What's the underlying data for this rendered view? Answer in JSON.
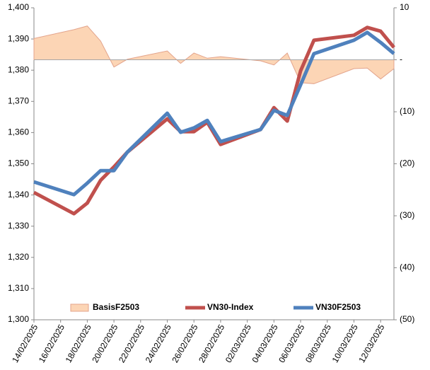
{
  "chart_data": {
    "type": "line",
    "x": [
      "14/02/2025",
      "17/02/2025",
      "18/02/2025",
      "19/02/2025",
      "20/02/2025",
      "21/02/2025",
      "24/02/2025",
      "25/02/2025",
      "26/02/2025",
      "27/02/2025",
      "28/02/2025",
      "03/03/2025",
      "04/03/2025",
      "05/03/2025",
      "06/03/2025",
      "07/03/2025",
      "10/03/2025",
      "11/03/2025",
      "12/03/2025",
      "13/03/2025"
    ],
    "xticks": [
      "14/02/2025",
      "16/02/2025",
      "18/02/2025",
      "20/02/2025",
      "22/02/2025",
      "24/02/2025",
      "26/02/2025",
      "28/02/2025",
      "02/03/2025",
      "04/03/2025",
      "06/03/2025",
      "08/03/2025",
      "10/03/2025",
      "12/03/2025"
    ],
    "series": [
      {
        "name": "BasisF2503",
        "type": "area",
        "axis": "y2",
        "color": "#fcd5b5",
        "edge": "#e3a48c",
        "values": [
          4.1,
          5.8,
          6.5,
          3.6,
          -1.4,
          0.1,
          1.7,
          -0.7,
          1.3,
          0.3,
          0.6,
          -0.2,
          -1.0,
          1.3,
          -4.4,
          -4.6,
          -1.7,
          -1.6,
          -3.7,
          -1.7
        ]
      },
      {
        "name": "VN30-Index",
        "type": "line",
        "color": "#c0504d",
        "values": [
          1340.8,
          1334.0,
          1337.4,
          1344.7,
          1349.0,
          1353.7,
          1364.4,
          1360.3,
          1360.3,
          1363.3,
          1356.2,
          1361.0,
          1368.0,
          1363.7,
          1379.8,
          1389.6,
          1391.2,
          1393.7,
          1392.5,
          1387.3
        ]
      },
      {
        "name": "VN30F2503",
        "type": "line",
        "color": "#4f81bd",
        "values": [
          1344.2,
          1340.1,
          1343.8,
          1347.8,
          1347.8,
          1353.7,
          1366.2,
          1360.1,
          1361.5,
          1363.9,
          1357.1,
          1361.0,
          1367.1,
          1365.5,
          1375.3,
          1385.3,
          1389.6,
          1392.1,
          1388.9,
          1385.3
        ]
      }
    ],
    "ylim": [
      1300,
      1400
    ],
    "yticks": [
      {
        "value": 1300,
        "label": "1,300"
      },
      {
        "value": 1310,
        "label": "1,310"
      },
      {
        "value": 1320,
        "label": "1,320"
      },
      {
        "value": 1330,
        "label": "1,330"
      },
      {
        "value": 1340,
        "label": "1,340"
      },
      {
        "value": 1350,
        "label": "1,350"
      },
      {
        "value": 1360,
        "label": "1,360"
      },
      {
        "value": 1370,
        "label": "1,370"
      },
      {
        "value": 1380,
        "label": "1,380"
      },
      {
        "value": 1390,
        "label": "1,390"
      },
      {
        "value": 1400,
        "label": "1,400"
      }
    ],
    "y2lim": [
      -50,
      10
    ],
    "y2ticks": [
      {
        "value": -50,
        "label": "(50)"
      },
      {
        "value": -40,
        "label": "(40)"
      },
      {
        "value": -30,
        "label": "(30)"
      },
      {
        "value": -20,
        "label": "(20)"
      },
      {
        "value": -10,
        "label": "(10)"
      },
      {
        "value": 0,
        "label": "-"
      },
      10
    ],
    "legend": "bottom"
  }
}
